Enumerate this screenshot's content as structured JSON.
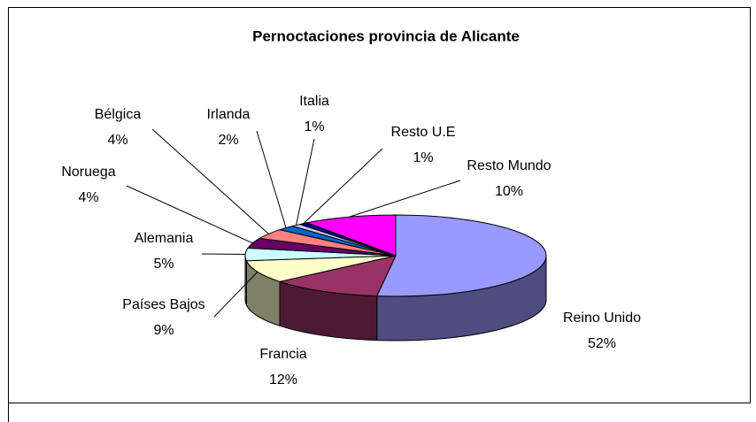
{
  "chart_data": {
    "type": "pie",
    "title": "Pernoctaciones provincia de Alicante",
    "categories": [
      "Reino Unido",
      "Francia",
      "Países Bajos",
      "Alemania",
      "Noruega",
      "Bélgica",
      "Irlanda",
      "Italia",
      "Resto U.E",
      "Resto Mundo"
    ],
    "values": [
      52,
      12,
      9,
      5,
      4,
      4,
      2,
      1,
      1,
      10
    ],
    "value_labels": [
      "52%",
      "12%",
      "9%",
      "5%",
      "4%",
      "4%",
      "2%",
      "1%",
      "1%",
      "10%"
    ],
    "colors": [
      "#9999ff",
      "#993366",
      "#ffffcc",
      "#ccffff",
      "#660066",
      "#ff8080",
      "#0066cc",
      "#ccccff",
      "#000080",
      "#ff00ff"
    ]
  }
}
